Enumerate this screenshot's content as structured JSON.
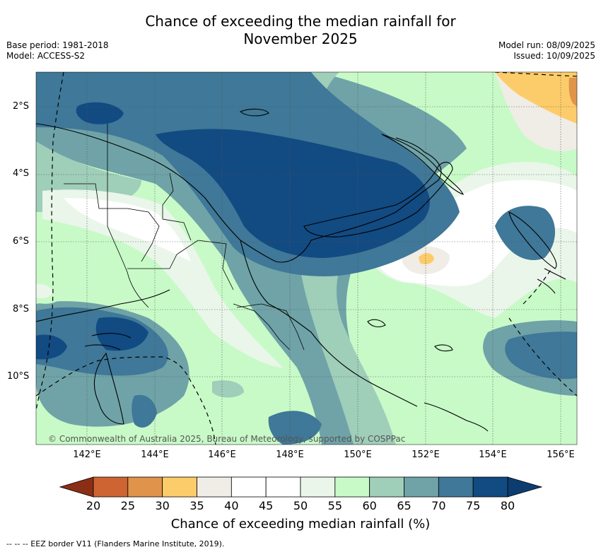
{
  "title_line1": "Chance of exceeding the median rainfall for",
  "title_line2": "November 2025",
  "base_period": "Base period: 1981-2018",
  "model": "Model: ACCESS-S2",
  "model_run": "Model run: 08/09/2025",
  "issued": "Issued: 10/09/2025",
  "lat_ticks": [
    "2°S",
    "4°S",
    "6°S",
    "8°S",
    "10°S"
  ],
  "lon_ticks": [
    "142°E",
    "144°E",
    "146°E",
    "148°E",
    "150°E",
    "152°E",
    "154°E",
    "156°E"
  ],
  "copyright": "© Commonwealth of Australia 2025, Bureau of Meteorology, supported by COSPPac",
  "colorbar": {
    "ticks": [
      "20",
      "25",
      "30",
      "35",
      "40",
      "45",
      "50",
      "55",
      "60",
      "65",
      "70",
      "75",
      "80"
    ],
    "colors": [
      "#b2461f",
      "#cd6431",
      "#e0934a",
      "#fdcc6a",
      "#f0ece6",
      "#ffffff",
      "#ffffff",
      "#eaf6ea",
      "#c8fac8",
      "#9fceb9",
      "#6fa3a8",
      "#3f7898",
      "#124a82"
    ],
    "label": "Chance of exceeding median rainfall (%)"
  },
  "eez_legend": "-- -- -- EEZ border V11 (Flanders Marine Institute, 2019)."
}
